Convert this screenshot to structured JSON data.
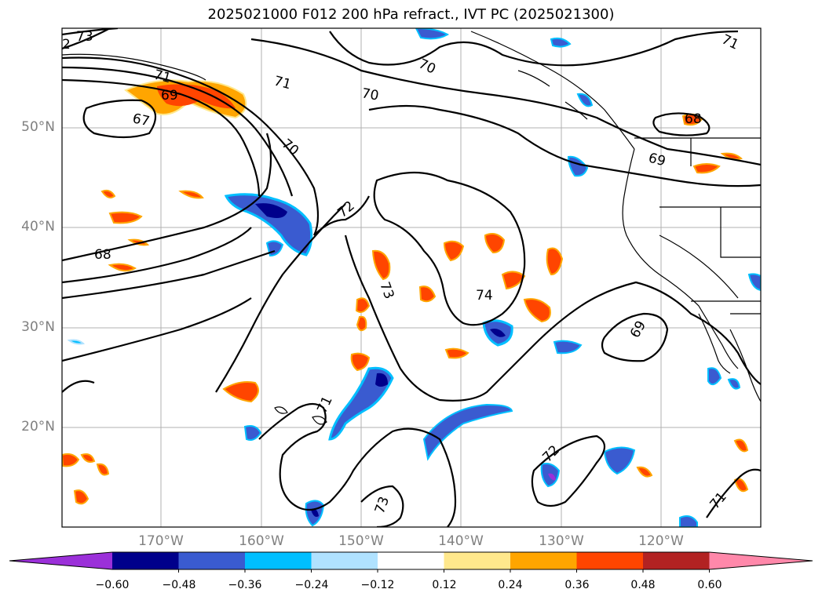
{
  "title": "2025021000 F012 200 hPa refract., IVT PC (2025021300)",
  "map": {
    "lat_labels": [
      "50°N",
      "40°N",
      "30°N",
      "20°N"
    ],
    "lon_labels": [
      "170°W",
      "160°W",
      "150°W",
      "140°W",
      "130°W",
      "120°W"
    ],
    "contour_labels": [
      {
        "text": "73"
      },
      {
        "text": "2"
      },
      {
        "text": "71"
      },
      {
        "text": "69"
      },
      {
        "text": "67"
      },
      {
        "text": "71"
      },
      {
        "text": "70"
      },
      {
        "text": "70"
      },
      {
        "text": "70"
      },
      {
        "text": "71"
      },
      {
        "text": "68"
      },
      {
        "text": "69"
      },
      {
        "text": "68"
      },
      {
        "text": "72"
      },
      {
        "text": "73"
      },
      {
        "text": "74"
      },
      {
        "text": "69"
      },
      {
        "text": "71"
      },
      {
        "text": "72"
      },
      {
        "text": "73"
      },
      {
        "text": "71"
      }
    ]
  },
  "colorbar": {
    "colors": [
      "#9b30d9",
      "#00008b",
      "#3a5bd0",
      "#00bfff",
      "#b0e2ff",
      "#ffffff",
      "#ffe88c",
      "#ffa500",
      "#ff4500",
      "#b22222",
      "#ff88aa"
    ],
    "ticks": [
      "−0.60",
      "−0.48",
      "−0.36",
      "−0.24",
      "−0.12",
      "0.12",
      "0.24",
      "0.36",
      "0.48",
      "0.60"
    ]
  }
}
